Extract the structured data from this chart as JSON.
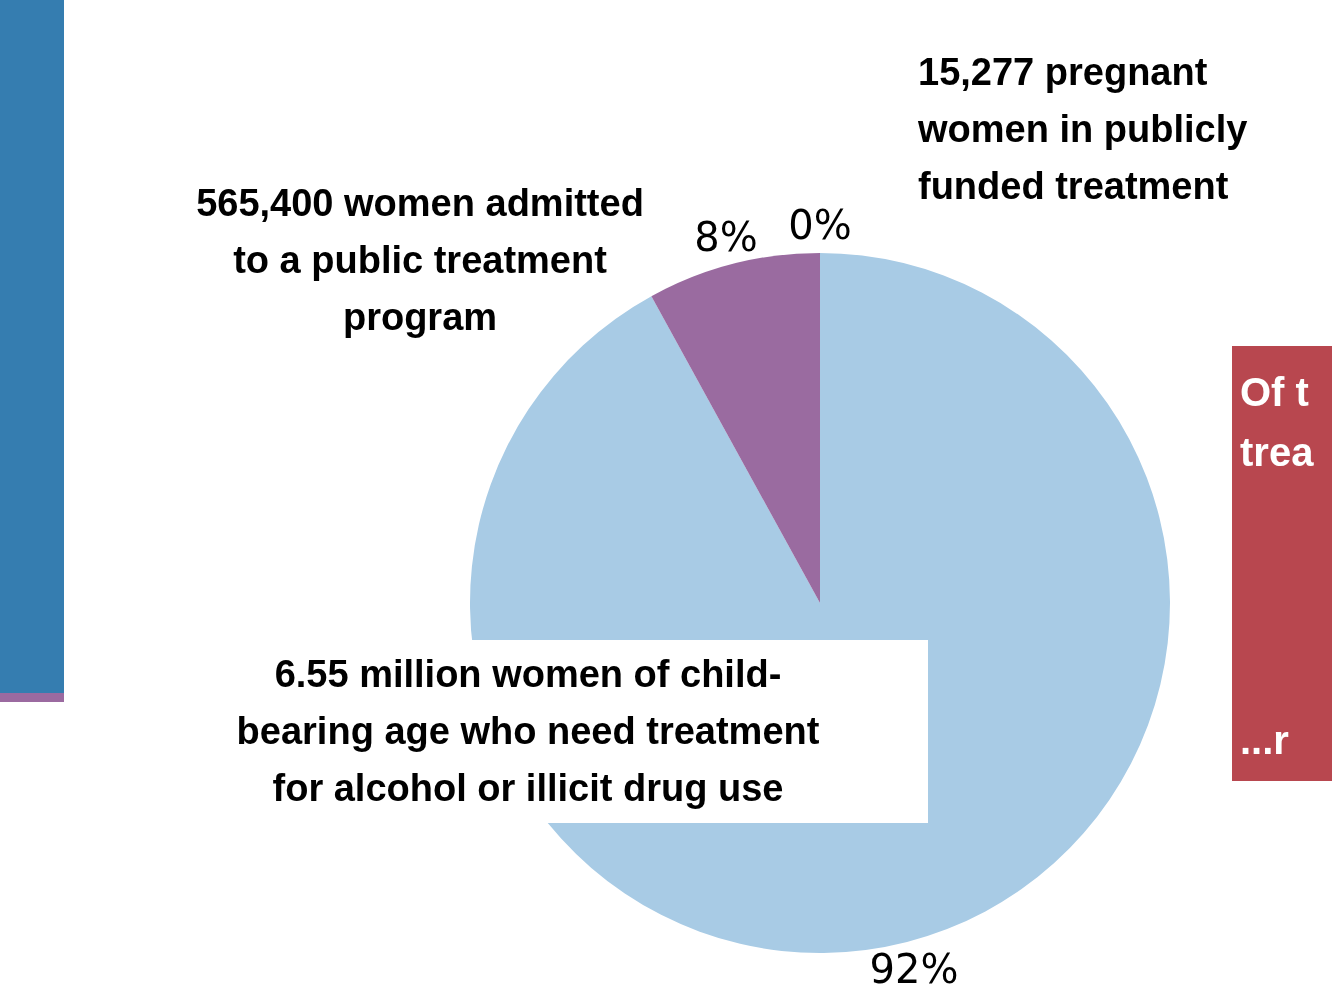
{
  "chart_data": {
    "type": "pie",
    "categories": [
      "6.55 million women of child-bearing age who need treatment for alcohol or illicit drug use",
      "565,400 women admitted to a public treatment program",
      "15,277 pregnant women in publicly funded treatment"
    ],
    "values": [
      92,
      8,
      0
    ],
    "colors": [
      "#a8cbe5",
      "#9a6ba0",
      "#c0404a"
    ],
    "value_labels": [
      "92%",
      "8%",
      "0%"
    ],
    "legend": false,
    "annotations": [
      "Of t",
      "trea",
      "...r"
    ]
  }
}
